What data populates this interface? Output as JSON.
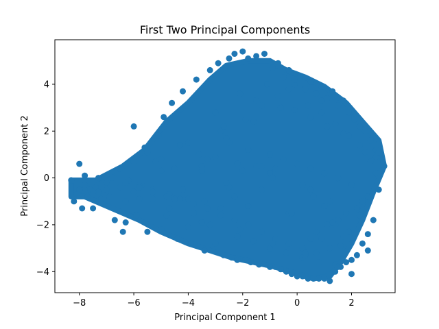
{
  "chart_data": {
    "type": "scatter",
    "title": "First Two Principal Components",
    "xlabel": "Principal Component 1",
    "ylabel": "Principal Component 2",
    "xlim": [
      -8.9,
      3.6
    ],
    "ylim": [
      -4.9,
      5.9
    ],
    "xticks": [
      -8,
      -6,
      -4,
      -2,
      0,
      2
    ],
    "yticks": [
      -4,
      -2,
      0,
      2,
      4
    ],
    "xtick_labels": [
      "−8",
      "−6",
      "−4",
      "−2",
      "0",
      "2"
    ],
    "ytick_labels": [
      "−4",
      "−2",
      "0",
      "2",
      "4"
    ],
    "grid": false,
    "marker_color": "#1f77b4",
    "series": [
      {
        "x": [
          -8.3,
          -8.2,
          -8.1,
          -8.0,
          -7.9,
          -7.8,
          -7.7,
          -7.6,
          -7.5,
          -7.4,
          -7.3,
          -7.2,
          -7.0,
          -6.9,
          -6.7,
          -6.5,
          -6.4,
          -6.3,
          -6.2,
          -6.0,
          -5.9,
          -5.8,
          -5.6,
          -5.5,
          -5.3,
          -5.1,
          -5.0,
          -4.9,
          -4.7,
          -4.6,
          -4.4,
          -4.2,
          -4.0,
          -3.9,
          -3.7,
          -3.5,
          -3.4,
          -3.2,
          -3.0,
          -2.9,
          -2.7,
          -2.5,
          -2.4,
          -2.3,
          -2.2,
          -2.0,
          -1.9,
          -1.8,
          -1.7,
          -1.5,
          -1.4,
          -1.2,
          -1.0,
          -0.9,
          -0.8,
          -0.7,
          -0.6,
          -0.5,
          -0.4,
          -0.3,
          -0.2,
          -0.1,
          0.0,
          0.1,
          0.2,
          0.3,
          0.4,
          0.5,
          0.6,
          0.7,
          0.8,
          0.9,
          1.0,
          1.1,
          1.2,
          1.3,
          1.4,
          1.5,
          1.6,
          1.7,
          1.8,
          1.9,
          2.0,
          2.1,
          2.2,
          2.3,
          2.4,
          2.5,
          2.6,
          2.7,
          2.8,
          2.9,
          3.0,
          3.1,
          3.2,
          -6.3,
          -6.0,
          -5.7,
          -5.3,
          -4.8,
          -4.5,
          -4.0,
          -3.6,
          -3.2,
          -2.8,
          -2.5,
          -2.2,
          -1.9,
          -1.6,
          -1.3,
          -1.0,
          -0.7,
          -0.4,
          -0.1,
          0.2,
          0.5,
          0.8,
          1.1,
          1.4,
          1.7,
          2.0,
          2.3,
          2.6,
          2.9,
          -5.8,
          -5.2,
          -4.7,
          -4.3,
          -3.8,
          -3.3,
          -2.7,
          -2.1,
          -1.5,
          -0.9,
          -0.3,
          0.3,
          0.9,
          1.5,
          2.1,
          2.7,
          -3.5,
          -3.0,
          -2.6,
          -2.1,
          -1.6,
          -1.1,
          -0.6,
          -0.1,
          0.4,
          0.9,
          1.4,
          1.9,
          -2.2,
          -1.8,
          -1.3,
          -0.8,
          -0.3,
          0.2,
          0.7,
          1.2,
          1.6,
          0.5,
          1.0,
          1.5,
          1.9,
          2.3,
          2.6,
          2.9,
          2.4,
          1.7,
          1.2,
          0.7,
          0.2,
          -0.3,
          -0.8,
          -1.3,
          -1.8,
          -2.3,
          -2.8,
          -3.3,
          -3.8,
          -4.3,
          -4.8,
          -5.3,
          -5.8,
          -6.3,
          -6.8,
          -7.3,
          -7.8,
          -2.0,
          -1.5,
          -1.0,
          -0.5,
          0.0,
          0.5,
          1.0,
          1.5,
          2.0,
          2.5,
          -4.0,
          -3.5,
          -3.0,
          -2.5,
          -6.5,
          -6.0,
          -5.5,
          -5.0,
          -4.5,
          -7.0,
          -7.5,
          -8.0,
          -5.0,
          -4.2,
          -3.4,
          -2.6,
          -1.8,
          -1.0,
          -0.2,
          0.6,
          1.4,
          2.2,
          3.0,
          -1.3,
          -0.9,
          -2.8,
          -2.3,
          0.5,
          1.1,
          1.8,
          2.4,
          1.3,
          0.9,
          0.3
        ],
        "y": [
          -0.1,
          -1.0,
          -0.7,
          -0.5,
          -1.3,
          -0.3,
          -0.8,
          -0.5,
          -1.3,
          -0.4,
          -0.6,
          -0.9,
          -0.2,
          -0.8,
          -1.8,
          -0.4,
          -2.3,
          -1.9,
          -0.1,
          2.2,
          -1.6,
          -0.9,
          1.3,
          -2.3,
          -0.5,
          1.8,
          -2.2,
          2.6,
          -1.3,
          3.2,
          -2.6,
          3.7,
          -0.9,
          -2.8,
          4.2,
          -1.9,
          -3.1,
          4.6,
          -2.8,
          4.9,
          -3.3,
          5.1,
          -3.4,
          5.3,
          -3.5,
          5.4,
          -3.5,
          5.1,
          -3.6,
          5.2,
          -3.7,
          5.3,
          -3.8,
          4.7,
          -3.8,
          4.9,
          -3.9,
          4.3,
          -4.0,
          4.6,
          -4.1,
          4.0,
          -4.2,
          4.3,
          -4.2,
          3.8,
          -4.3,
          4.1,
          -4.3,
          3.6,
          -4.3,
          3.9,
          -4.3,
          3.4,
          -4.4,
          3.7,
          -4.0,
          3.1,
          -3.8,
          3.3,
          -3.6,
          2.8,
          -4.1,
          2.6,
          -3.3,
          2.2,
          -2.8,
          2.0,
          -2.4,
          1.6,
          -1.8,
          1.2,
          -0.5,
          0.3,
          0.5,
          -1.0,
          -0.6,
          -0.3,
          -0.9,
          -1.6,
          0.4,
          -2.1,
          1.0,
          -2.0,
          2.0,
          1.5,
          -2.5,
          2.5,
          -2.7,
          3.1,
          -3.0,
          3.5,
          -3.2,
          2.9,
          -3.4,
          2.6,
          -3.6,
          2.2,
          -3.7,
          1.9,
          -3.5,
          1.4,
          -3.1,
          0.9,
          -0.3,
          0.7,
          -0.7,
          1.4,
          -1.5,
          0.8,
          2.2,
          -2.2,
          3.3,
          -2.8,
          3.8,
          -3.3,
          3.3,
          -3.8,
          2.5,
          0.7,
          0.3,
          2.8,
          1.7,
          3.6,
          2.4,
          4.0,
          3.0,
          4.2,
          3.1,
          2.8,
          2.3,
          1.8,
          0.6,
          1.2,
          -0.5,
          0.4,
          -1.5,
          -0.3,
          -2.3,
          -1.0,
          -2.9,
          -0.5,
          -1.2,
          -1.8,
          -2.3,
          -1.6,
          -0.8,
          0.2,
          -1.4,
          -2.5,
          -3.0,
          -3.2,
          -3.0,
          -2.8,
          -2.6,
          -2.3,
          -2.0,
          -1.8,
          -1.6,
          -1.3,
          -1.1,
          -0.9,
          -0.8,
          -0.6,
          -0.4,
          -0.2,
          0.0,
          0.0,
          0.1,
          0.3,
          0.5,
          1.0,
          0.8,
          0.6,
          0.4,
          0.2,
          0.0,
          -0.3,
          1.1,
          1.5,
          0.5,
          0.9,
          -0.4,
          0.4,
          0.7,
          1.1,
          0.3,
          -0.9,
          -0.5,
          -0.6,
          0.6,
          0.8,
          -0.5,
          -1.0,
          -0.2,
          -1.2,
          0.2,
          -1.5,
          -0.8,
          -2.0,
          -1.3,
          1.1,
          0.5,
          0.0,
          -1.3,
          -0.8,
          -2.6,
          -2.0,
          -1.5,
          -1.0,
          -1.9,
          -2.6,
          -3.2
        ]
      }
    ]
  }
}
